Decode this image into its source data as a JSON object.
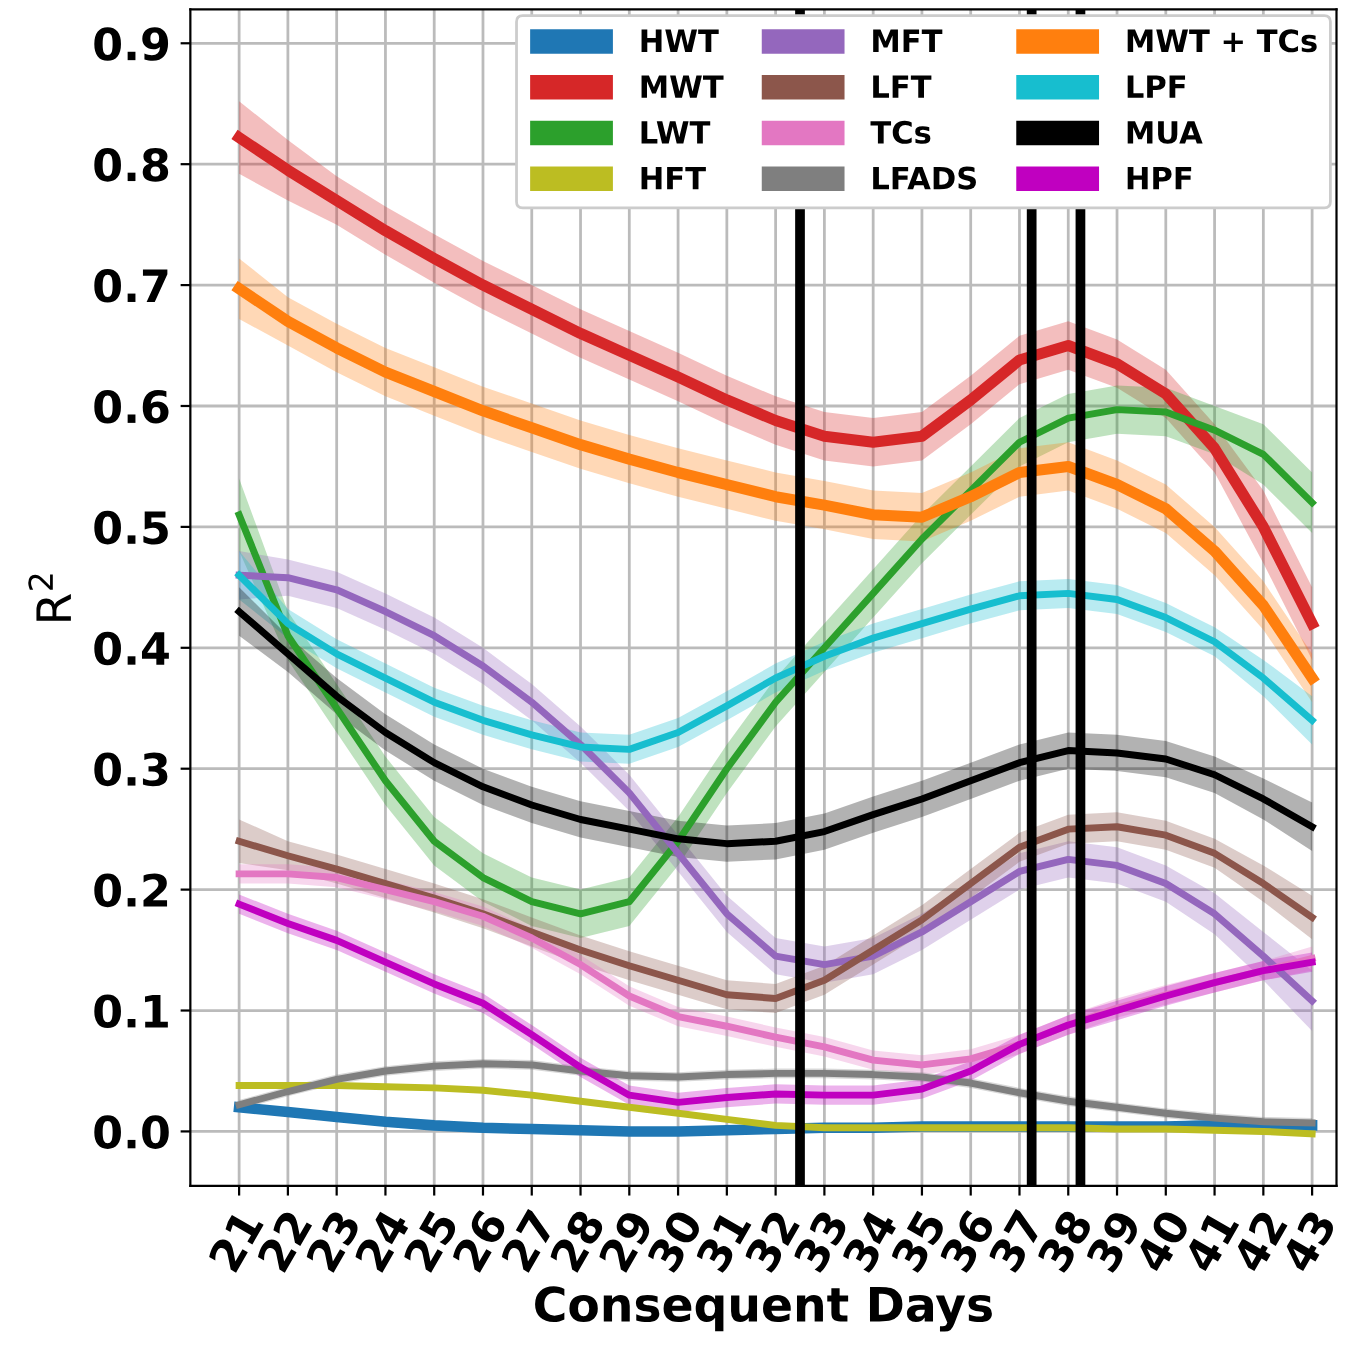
{
  "chart_data": {
    "type": "line",
    "xlabel": "Consequent Days",
    "ylabel": "R$^{2}$",
    "x": [
      21,
      22,
      23,
      24,
      25,
      26,
      27,
      28,
      29,
      30,
      31,
      32,
      33,
      34,
      35,
      36,
      37,
      38,
      39,
      40,
      41,
      42,
      43
    ],
    "xlim": [
      20,
      43.5
    ],
    "xticks": [
      21,
      22,
      23,
      24,
      25,
      26,
      27,
      28,
      29,
      30,
      31,
      32,
      33,
      34,
      35,
      36,
      37,
      38,
      39,
      40,
      41,
      42,
      43
    ],
    "ylim": [
      -0.045,
      0.928
    ],
    "yticks": [
      {
        "value": 0,
        "label": "0.0"
      },
      0.1,
      0.2,
      0.3,
      0.4,
      0.5,
      0.6,
      0.7,
      0.8,
      0.9
    ],
    "grid": true,
    "legend": "top right",
    "marker": "none",
    "line_style": "solid",
    "ref_lines": [
      {
        "axis": "x",
        "value": 32.5,
        "color": "#000000"
      },
      {
        "axis": "x",
        "value": 37.25,
        "color": "#000000"
      },
      {
        "axis": "x",
        "value": 38.25,
        "color": "#000000"
      }
    ],
    "series": [
      {
        "name": "HWT",
        "color": "#1f77b4",
        "values": [
          0.02,
          0.016,
          0.012,
          0.008,
          0.005,
          0.003,
          0.002,
          0.001,
          0.0,
          0.0,
          0.001,
          0.002,
          0.003,
          0.003,
          0.004,
          0.004,
          0.004,
          0.004,
          0.004,
          0.004,
          0.005,
          0.005,
          0.005
        ]
      },
      {
        "name": "MWT",
        "color": "#d62728",
        "values": [
          0.822,
          0.795,
          0.77,
          0.745,
          0.722,
          0.7,
          0.68,
          0.66,
          0.642,
          0.624,
          0.605,
          0.588,
          0.575,
          0.57,
          0.575,
          0.605,
          0.638,
          0.65,
          0.635,
          0.61,
          0.565,
          0.5,
          0.42
        ],
        "lower": [
          0.792,
          0.77,
          0.75,
          0.725,
          0.702,
          0.68,
          0.66,
          0.64,
          0.622,
          0.604,
          0.585,
          0.568,
          0.555,
          0.55,
          0.555,
          0.585,
          0.618,
          0.63,
          0.615,
          0.59,
          0.545,
          0.47,
          0.39
        ],
        "upper": [
          0.852,
          0.82,
          0.79,
          0.765,
          0.742,
          0.72,
          0.7,
          0.68,
          0.662,
          0.644,
          0.625,
          0.608,
          0.595,
          0.59,
          0.595,
          0.625,
          0.658,
          0.67,
          0.655,
          0.63,
          0.585,
          0.53,
          0.45
        ]
      },
      {
        "name": "LWT",
        "color": "#2ca02c",
        "values": [
          0.51,
          0.41,
          0.35,
          0.29,
          0.24,
          0.21,
          0.19,
          0.18,
          0.19,
          0.24,
          0.3,
          0.355,
          0.4,
          0.445,
          0.49,
          0.53,
          0.57,
          0.59,
          0.597,
          0.595,
          0.58,
          0.56,
          0.52
        ],
        "lower": [
          0.48,
          0.39,
          0.33,
          0.27,
          0.22,
          0.19,
          0.17,
          0.16,
          0.17,
          0.22,
          0.28,
          0.335,
          0.38,
          0.425,
          0.47,
          0.51,
          0.55,
          0.57,
          0.577,
          0.575,
          0.56,
          0.535,
          0.495
        ],
        "upper": [
          0.54,
          0.43,
          0.37,
          0.31,
          0.26,
          0.23,
          0.21,
          0.2,
          0.21,
          0.26,
          0.32,
          0.375,
          0.42,
          0.465,
          0.51,
          0.55,
          0.59,
          0.61,
          0.617,
          0.615,
          0.6,
          0.585,
          0.545
        ]
      },
      {
        "name": "HFT",
        "color": "#bcbd22",
        "values": [
          0.038,
          0.038,
          0.038,
          0.037,
          0.036,
          0.034,
          0.03,
          0.025,
          0.02,
          0.015,
          0.01,
          0.005,
          0.003,
          0.003,
          0.003,
          0.003,
          0.003,
          0.003,
          0.002,
          0.002,
          0.001,
          0.0,
          -0.002
        ]
      },
      {
        "name": "MFT",
        "color": "#9467bd",
        "values": [
          0.46,
          0.458,
          0.448,
          0.43,
          0.41,
          0.385,
          0.355,
          0.32,
          0.28,
          0.23,
          0.18,
          0.145,
          0.138,
          0.145,
          0.165,
          0.19,
          0.215,
          0.225,
          0.22,
          0.205,
          0.18,
          0.145,
          0.108
        ],
        "lower": [
          0.44,
          0.443,
          0.433,
          0.415,
          0.395,
          0.37,
          0.34,
          0.305,
          0.265,
          0.215,
          0.165,
          0.13,
          0.123,
          0.13,
          0.15,
          0.175,
          0.2,
          0.21,
          0.205,
          0.19,
          0.163,
          0.125,
          0.083
        ],
        "upper": [
          0.48,
          0.473,
          0.463,
          0.445,
          0.425,
          0.4,
          0.37,
          0.335,
          0.295,
          0.245,
          0.195,
          0.16,
          0.153,
          0.16,
          0.18,
          0.205,
          0.23,
          0.24,
          0.235,
          0.22,
          0.197,
          0.165,
          0.133
        ]
      },
      {
        "name": "LFT",
        "color": "#8c564b",
        "values": [
          0.24,
          0.228,
          0.217,
          0.205,
          0.193,
          0.18,
          0.165,
          0.15,
          0.137,
          0.125,
          0.113,
          0.11,
          0.125,
          0.15,
          0.175,
          0.205,
          0.235,
          0.25,
          0.252,
          0.245,
          0.23,
          0.205,
          0.177
        ],
        "lower": [
          0.222,
          0.216,
          0.205,
          0.193,
          0.181,
          0.168,
          0.153,
          0.138,
          0.125,
          0.113,
          0.101,
          0.098,
          0.113,
          0.138,
          0.163,
          0.193,
          0.223,
          0.238,
          0.24,
          0.233,
          0.218,
          0.19,
          0.159
        ],
        "upper": [
          0.258,
          0.24,
          0.229,
          0.217,
          0.205,
          0.192,
          0.177,
          0.162,
          0.149,
          0.137,
          0.125,
          0.122,
          0.137,
          0.162,
          0.187,
          0.217,
          0.247,
          0.262,
          0.264,
          0.257,
          0.242,
          0.22,
          0.195
        ]
      },
      {
        "name": "TCs",
        "color": "#e377c2",
        "values": [
          0.213,
          0.213,
          0.21,
          0.2,
          0.19,
          0.178,
          0.16,
          0.138,
          0.112,
          0.095,
          0.087,
          0.078,
          0.07,
          0.059,
          0.055,
          0.06,
          0.072,
          0.088,
          0.102,
          0.113,
          0.123,
          0.133,
          0.143
        ],
        "lower": [
          0.205,
          0.205,
          0.202,
          0.192,
          0.182,
          0.17,
          0.152,
          0.13,
          0.104,
          0.087,
          0.079,
          0.07,
          0.062,
          0.051,
          0.047,
          0.052,
          0.064,
          0.08,
          0.094,
          0.105,
          0.115,
          0.125,
          0.133
        ],
        "upper": [
          0.221,
          0.221,
          0.218,
          0.208,
          0.198,
          0.186,
          0.168,
          0.146,
          0.12,
          0.103,
          0.095,
          0.086,
          0.078,
          0.067,
          0.063,
          0.068,
          0.08,
          0.096,
          0.11,
          0.121,
          0.131,
          0.141,
          0.153
        ]
      },
      {
        "name": "LFADS",
        "color": "#7f7f7f",
        "values": [
          0.022,
          0.033,
          0.043,
          0.05,
          0.054,
          0.056,
          0.055,
          0.05,
          0.046,
          0.045,
          0.047,
          0.048,
          0.048,
          0.047,
          0.045,
          0.04,
          0.032,
          0.025,
          0.02,
          0.015,
          0.011,
          0.008,
          0.007
        ],
        "lower": [
          0.018,
          0.029,
          0.039,
          0.046,
          0.05,
          0.052,
          0.051,
          0.046,
          0.042,
          0.041,
          0.043,
          0.044,
          0.044,
          0.043,
          0.041,
          0.036,
          0.028,
          0.021,
          0.016,
          0.011,
          0.007,
          0.004,
          0.003
        ],
        "upper": [
          0.026,
          0.037,
          0.047,
          0.054,
          0.058,
          0.06,
          0.059,
          0.054,
          0.05,
          0.049,
          0.051,
          0.052,
          0.052,
          0.051,
          0.049,
          0.044,
          0.036,
          0.029,
          0.024,
          0.019,
          0.015,
          0.012,
          0.011
        ]
      },
      {
        "name": "MWT + TCs",
        "color": "#ff7f0e",
        "values": [
          0.697,
          0.67,
          0.648,
          0.628,
          0.612,
          0.596,
          0.582,
          0.568,
          0.556,
          0.545,
          0.535,
          0.525,
          0.518,
          0.51,
          0.508,
          0.525,
          0.545,
          0.55,
          0.535,
          0.515,
          0.48,
          0.435,
          0.375
        ],
        "lower": [
          0.672,
          0.65,
          0.628,
          0.608,
          0.592,
          0.576,
          0.562,
          0.548,
          0.536,
          0.525,
          0.515,
          0.505,
          0.498,
          0.49,
          0.488,
          0.505,
          0.525,
          0.53,
          0.515,
          0.495,
          0.46,
          0.415,
          0.355
        ],
        "upper": [
          0.722,
          0.69,
          0.668,
          0.648,
          0.632,
          0.616,
          0.602,
          0.588,
          0.576,
          0.565,
          0.555,
          0.545,
          0.538,
          0.53,
          0.528,
          0.545,
          0.565,
          0.57,
          0.555,
          0.535,
          0.5,
          0.455,
          0.395
        ]
      },
      {
        "name": "LPF",
        "color": "#17becf",
        "values": [
          0.46,
          0.42,
          0.395,
          0.375,
          0.355,
          0.34,
          0.328,
          0.318,
          0.316,
          0.33,
          0.352,
          0.375,
          0.393,
          0.408,
          0.42,
          0.432,
          0.443,
          0.445,
          0.44,
          0.425,
          0.405,
          0.375,
          0.34
        ],
        "lower": [
          0.44,
          0.408,
          0.383,
          0.363,
          0.343,
          0.328,
          0.316,
          0.306,
          0.304,
          0.318,
          0.34,
          0.363,
          0.381,
          0.396,
          0.408,
          0.42,
          0.431,
          0.433,
          0.428,
          0.413,
          0.393,
          0.36,
          0.32
        ],
        "upper": [
          0.48,
          0.432,
          0.407,
          0.387,
          0.367,
          0.352,
          0.34,
          0.33,
          0.328,
          0.342,
          0.364,
          0.387,
          0.405,
          0.42,
          0.432,
          0.444,
          0.455,
          0.457,
          0.452,
          0.437,
          0.417,
          0.39,
          0.36
        ]
      },
      {
        "name": "MUA",
        "color": "#000000",
        "values": [
          0.43,
          0.395,
          0.36,
          0.33,
          0.305,
          0.285,
          0.27,
          0.258,
          0.25,
          0.242,
          0.238,
          0.24,
          0.248,
          0.262,
          0.275,
          0.29,
          0.305,
          0.315,
          0.313,
          0.308,
          0.295,
          0.275,
          0.252
        ],
        "lower": [
          0.41,
          0.38,
          0.345,
          0.315,
          0.29,
          0.27,
          0.255,
          0.243,
          0.235,
          0.227,
          0.223,
          0.225,
          0.233,
          0.247,
          0.26,
          0.275,
          0.29,
          0.3,
          0.298,
          0.293,
          0.28,
          0.258,
          0.232
        ],
        "upper": [
          0.45,
          0.41,
          0.375,
          0.345,
          0.32,
          0.3,
          0.285,
          0.273,
          0.265,
          0.257,
          0.253,
          0.255,
          0.263,
          0.277,
          0.29,
          0.305,
          0.32,
          0.33,
          0.328,
          0.323,
          0.31,
          0.292,
          0.272
        ]
      },
      {
        "name": "HPF",
        "color": "#c000c0",
        "values": [
          0.188,
          0.172,
          0.158,
          0.14,
          0.122,
          0.106,
          0.08,
          0.053,
          0.03,
          0.024,
          0.028,
          0.031,
          0.03,
          0.03,
          0.035,
          0.05,
          0.072,
          0.088,
          0.1,
          0.112,
          0.123,
          0.133,
          0.14
        ],
        "lower": [
          0.18,
          0.164,
          0.15,
          0.132,
          0.114,
          0.098,
          0.072,
          0.045,
          0.022,
          0.016,
          0.02,
          0.023,
          0.022,
          0.022,
          0.027,
          0.042,
          0.064,
          0.08,
          0.092,
          0.104,
          0.115,
          0.125,
          0.132
        ],
        "upper": [
          0.196,
          0.18,
          0.166,
          0.148,
          0.13,
          0.114,
          0.088,
          0.061,
          0.038,
          0.032,
          0.036,
          0.039,
          0.038,
          0.038,
          0.043,
          0.058,
          0.08,
          0.096,
          0.108,
          0.12,
          0.131,
          0.141,
          0.148
        ]
      }
    ]
  }
}
